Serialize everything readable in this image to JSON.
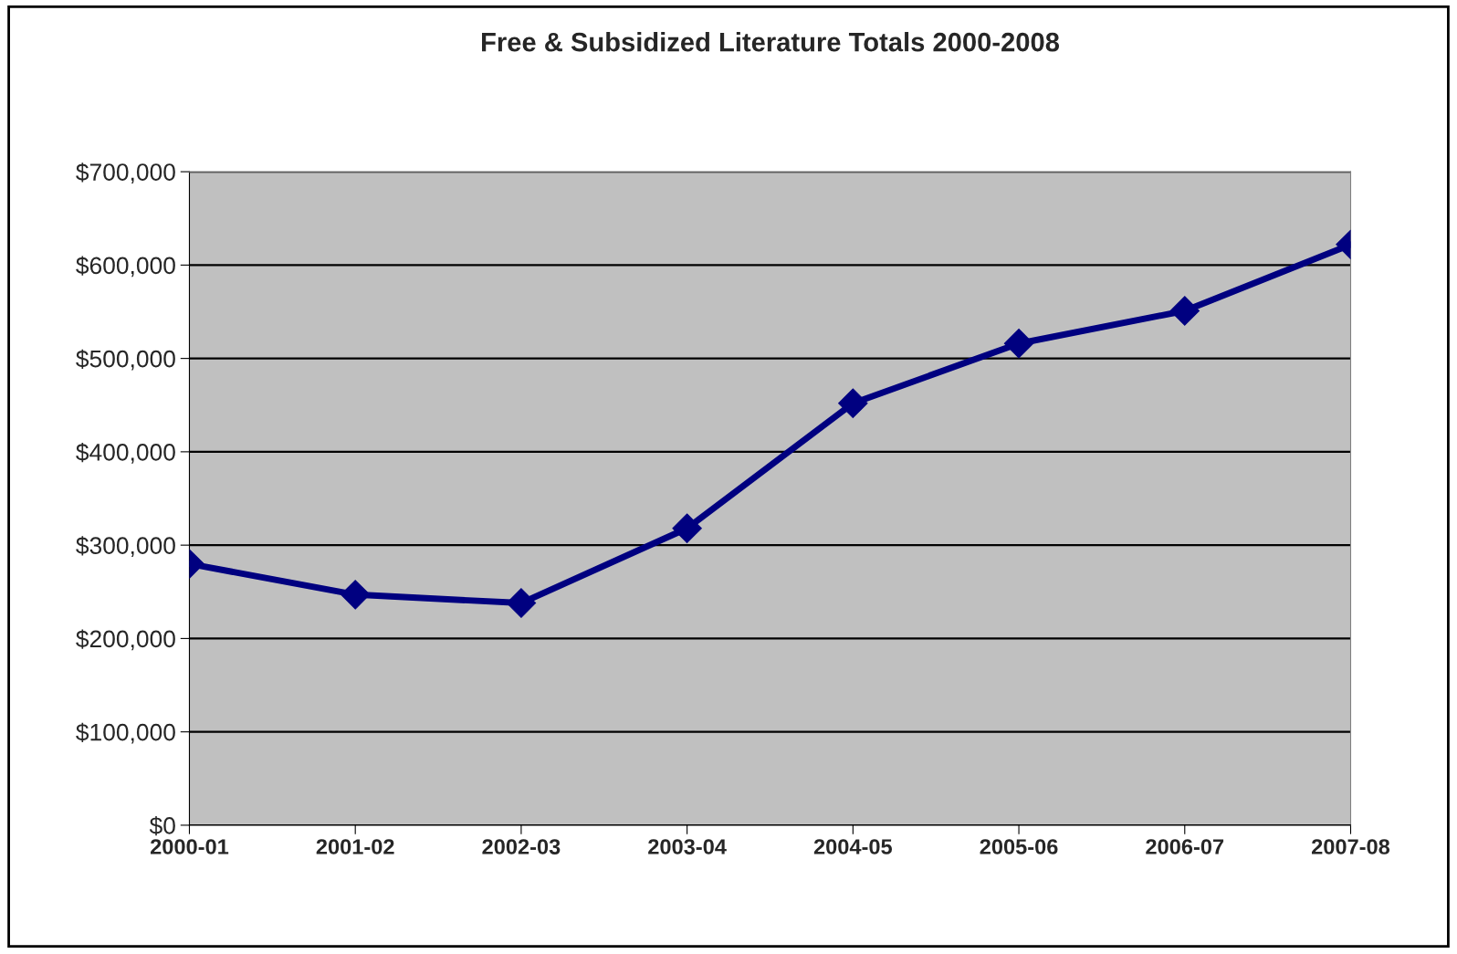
{
  "chart_data": {
    "type": "line",
    "title": "Free & Subsidized Literature Totals 2000-2008",
    "categories": [
      "2000-01",
      "2001-02",
      "2002-03",
      "2003-04",
      "2004-05",
      "2005-06",
      "2006-07",
      "2007-08"
    ],
    "series": [
      {
        "color": "#000080",
        "values": [
          280000,
          247000,
          238000,
          318000,
          452000,
          516000,
          551000,
          622000
        ]
      }
    ],
    "ylim": [
      0,
      700000
    ],
    "yticks": [
      {
        "value": 0,
        "label": "$0"
      },
      {
        "value": 100000,
        "label": "$100,000"
      },
      {
        "value": 200000,
        "label": "$200,000"
      },
      {
        "value": 300000,
        "label": "$300,000"
      },
      {
        "value": 400000,
        "label": "$400,000"
      },
      {
        "value": 500000,
        "label": "$500,000"
      },
      {
        "value": 600000,
        "label": "$600,000"
      },
      {
        "value": 700000,
        "label": "$700,000"
      }
    ],
    "grid": "y",
    "marker": "diamond",
    "line_style": "solid"
  }
}
